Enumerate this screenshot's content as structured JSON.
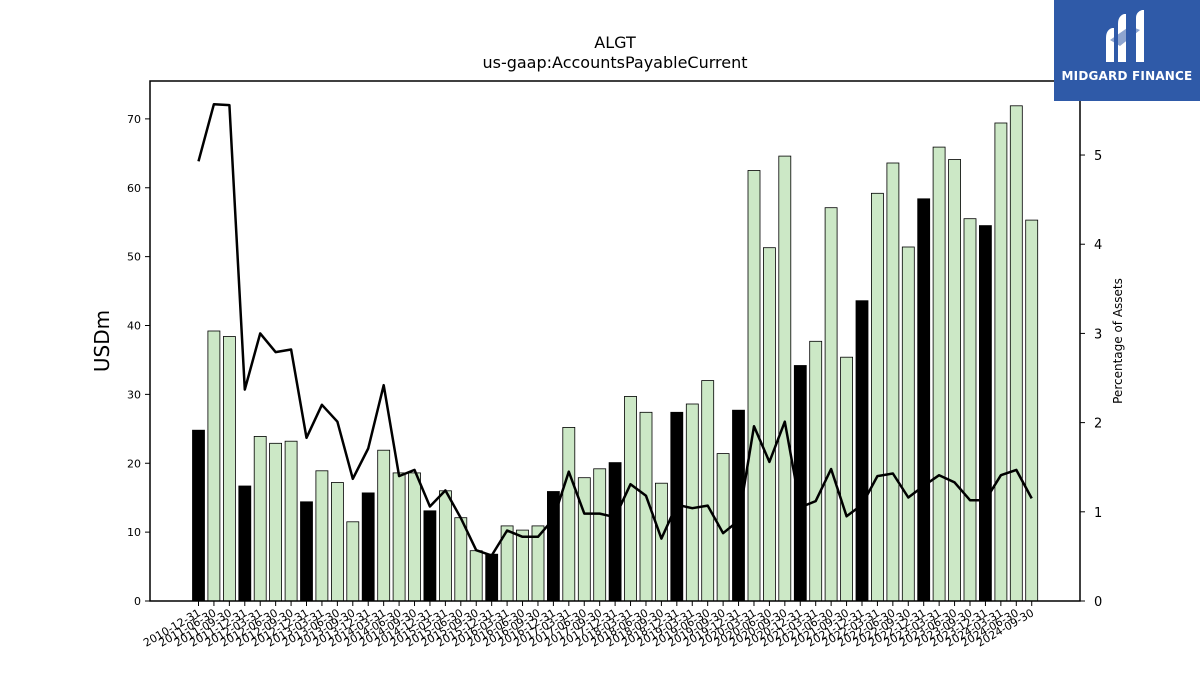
{
  "brand": {
    "name": "MIDGARD FINANCE",
    "icon": "midgard-logo-icon",
    "color": "#2f5aa8"
  },
  "chart_data": {
    "type": "bar",
    "title": "ALGT",
    "subtitle": "us-gaap:AccountsPayableCurrent",
    "ylabel": "USDm",
    "y2label": "Percentage of Assets",
    "ylim": [
      0,
      75.5
    ],
    "y2lim": [
      0,
      5.83
    ],
    "yticks": [
      0,
      10,
      20,
      30,
      40,
      50,
      60,
      70
    ],
    "y2ticks": [
      0,
      1,
      2,
      3,
      4,
      5
    ],
    "grid": false,
    "colors": {
      "annual": "#000000",
      "quarter": "#cce8c6",
      "line": "#000000"
    },
    "categories": [
      "2010-12-31",
      "2011-06-30",
      "2011-09-30",
      "2011-12-31",
      "2012-03-31",
      "2012-06-30",
      "2012-09-30",
      "2012-12-31",
      "2013-03-31",
      "2013-06-30",
      "2013-09-30",
      "2013-12-31",
      "2014-03-31",
      "2014-06-30",
      "2014-09-30",
      "2014-12-31",
      "2015-03-31",
      "2015-06-30",
      "2015-09-30",
      "2015-12-31",
      "2016-03-31",
      "2016-06-30",
      "2016-09-30",
      "2016-12-31",
      "2017-03-31",
      "2017-06-30",
      "2017-09-30",
      "2017-12-31",
      "2018-03-31",
      "2018-06-30",
      "2018-09-30",
      "2018-12-31",
      "2019-03-31",
      "2019-06-30",
      "2019-09-30",
      "2019-12-31",
      "2020-03-31",
      "2020-06-30",
      "2020-09-30",
      "2020-12-31",
      "2021-03-31",
      "2021-06-30",
      "2021-09-30",
      "2021-12-31",
      "2022-03-31",
      "2022-06-30",
      "2022-09-30",
      "2022-12-31",
      "2023-03-31",
      "2023-06-30",
      "2023-09-30",
      "2023-12-31",
      "2024-03-31",
      "2024-06-30",
      "2024-09-30"
    ],
    "annual": [
      true,
      false,
      false,
      true,
      false,
      false,
      false,
      true,
      false,
      false,
      false,
      true,
      false,
      false,
      false,
      true,
      false,
      false,
      false,
      true,
      false,
      false,
      false,
      true,
      false,
      false,
      false,
      true,
      false,
      false,
      false,
      true,
      false,
      false,
      false,
      true,
      false,
      false,
      false,
      true,
      false,
      false,
      false,
      true,
      false,
      false,
      false,
      true,
      false,
      false,
      false,
      true,
      false,
      false,
      false
    ],
    "series": [
      {
        "name": "",
        "type": "bar",
        "axis": "left",
        "values": [
          24.8,
          39.2,
          38.4,
          16.7,
          23.9,
          22.9,
          23.2,
          14.4,
          18.9,
          17.2,
          11.5,
          15.7,
          21.9,
          18.6,
          18.6,
          13.1,
          16.0,
          12.1,
          7.3,
          6.8,
          10.9,
          10.3,
          10.9,
          15.9,
          25.2,
          17.9,
          19.2,
          20.1,
          29.7,
          27.4,
          17.1,
          27.4,
          28.6,
          32.0,
          21.4,
          27.7,
          62.5,
          51.3,
          64.6,
          34.2,
          37.7,
          57.1,
          35.4,
          43.6,
          59.2,
          63.6,
          51.4,
          58.4,
          65.9,
          64.1,
          55.5,
          54.5,
          69.4,
          71.9,
          55.3
        ]
      },
      {
        "name": "",
        "type": "line",
        "axis": "right",
        "values": [
          4.93,
          5.57,
          5.56,
          2.37,
          3.0,
          2.79,
          2.82,
          1.83,
          2.2,
          2.01,
          1.37,
          1.71,
          2.42,
          1.4,
          1.47,
          1.06,
          1.24,
          0.93,
          0.57,
          0.51,
          0.79,
          0.72,
          0.72,
          0.92,
          1.45,
          0.98,
          0.98,
          0.94,
          1.31,
          1.18,
          0.7,
          1.08,
          1.04,
          1.07,
          0.76,
          0.9,
          1.96,
          1.56,
          2.01,
          1.05,
          1.12,
          1.48,
          0.95,
          1.08,
          1.4,
          1.43,
          1.16,
          1.29,
          1.41,
          1.33,
          1.13,
          1.13,
          1.41,
          1.47,
          1.15
        ]
      }
    ]
  }
}
